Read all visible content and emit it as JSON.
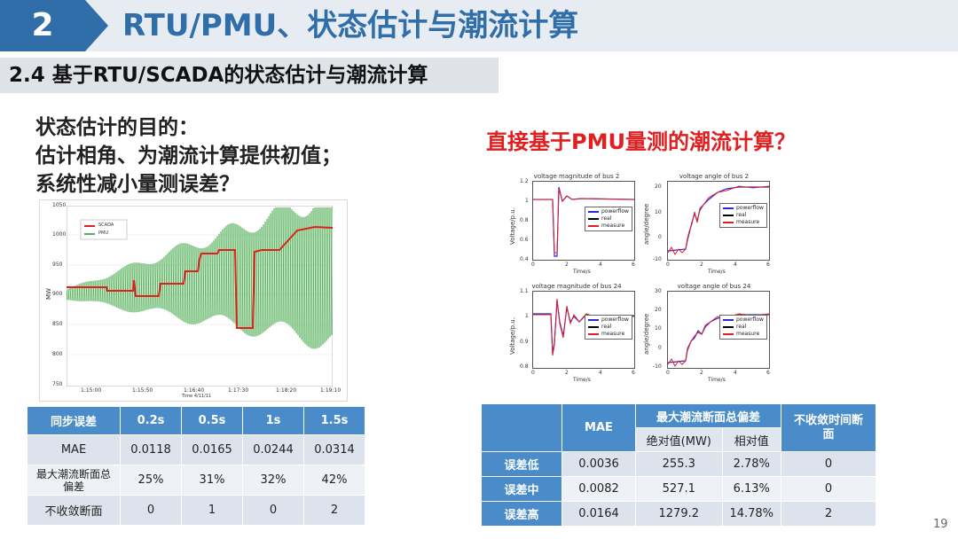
{
  "header": {
    "section_number": "2",
    "title": "RTU/PMU、状态估计与潮流计算"
  },
  "subheader": {
    "title": "2.4 基于RTU/SCADA的状态估计与潮流计算"
  },
  "purpose": {
    "lines": [
      "状态估计的目的：",
      "估计相角、为潮流计算提供初值；",
      "系统性减小量测误差？"
    ]
  },
  "question": "直接基于PMU量测的潮流计算？",
  "scada_plot": {
    "legend": [
      "SCADA",
      "PMU"
    ],
    "y_ticks": [
      "1050",
      "1000",
      "950",
      "900",
      "850",
      "800",
      "750"
    ],
    "y_label": "MW",
    "x_ticks": [
      "1:15:00",
      "1:15:50",
      "1:16:40",
      "1:17:30",
      "1:18:20",
      "1:19:10"
    ],
    "x_label": "Time 4/11/11"
  },
  "pmu_plots": [
    {
      "title": "voltage magnitude of bus 2",
      "ylabel": "Voltage/p.u.",
      "yticks": [
        "1.2",
        "1",
        "0.8",
        "0.6",
        "0.4"
      ],
      "xticks": [
        "0",
        "2",
        "4",
        "6"
      ],
      "xlabel": "Time/s"
    },
    {
      "title": "voltage angle of bus 2",
      "ylabel": "angle/degree",
      "yticks": [
        "20",
        "10",
        "0",
        "-10"
      ],
      "xticks": [
        "0",
        "2",
        "4",
        "6"
      ],
      "xlabel": "Time/s"
    },
    {
      "title": "voltage magnitude of bus 24",
      "ylabel": "Voltage/p.u.",
      "yticks": [
        "1.1",
        "1",
        "0.9",
        "0.8"
      ],
      "xticks": [
        "0",
        "2",
        "4",
        "6"
      ],
      "xlabel": "Time/s"
    },
    {
      "title": "voltage angle of bus 24",
      "ylabel": "angle/degree",
      "yticks": [
        "30",
        "20",
        "10",
        "0",
        "-10"
      ],
      "xticks": [
        "0",
        "2",
        "4",
        "6"
      ],
      "xlabel": "Time/s"
    }
  ],
  "pmu_legend": [
    "powerflow",
    "real",
    "measure"
  ],
  "colors": {
    "header_blue": "#2f6ea8",
    "table_blue": "#4a8cc9",
    "question_red": "#e02020",
    "pmu_green": "#55b05a",
    "scada_red": "#e0201e"
  },
  "table1": {
    "headers": [
      "同步误差",
      "0.2s",
      "0.5s",
      "1s",
      "1.5s"
    ],
    "rows": [
      {
        "label": "MAE",
        "values": [
          "0.0118",
          "0.0165",
          "0.0244",
          "0.0314"
        ]
      },
      {
        "label": "最大潮流断面总偏差",
        "values": [
          "25%",
          "31%",
          "32%",
          "42%"
        ]
      },
      {
        "label": "不收敛断面",
        "values": [
          "0",
          "1",
          "0",
          "2"
        ]
      }
    ]
  },
  "table2": {
    "headers": {
      "mae": "MAE",
      "deviation": "最大潮流断面总偏差",
      "abs": "绝对值(MW)",
      "rel": "相对值",
      "nonconv": "不收敛时间断面"
    },
    "rows": [
      {
        "label": "误差低",
        "values": [
          "0.0036",
          "255.3",
          "2.78%",
          "0"
        ]
      },
      {
        "label": "误差中",
        "values": [
          "0.0082",
          "527.1",
          "6.13%",
          "0"
        ]
      },
      {
        "label": "误差高",
        "values": [
          "0.0164",
          "1279.2",
          "14.78%",
          "2"
        ]
      }
    ]
  },
  "page_number": "19"
}
